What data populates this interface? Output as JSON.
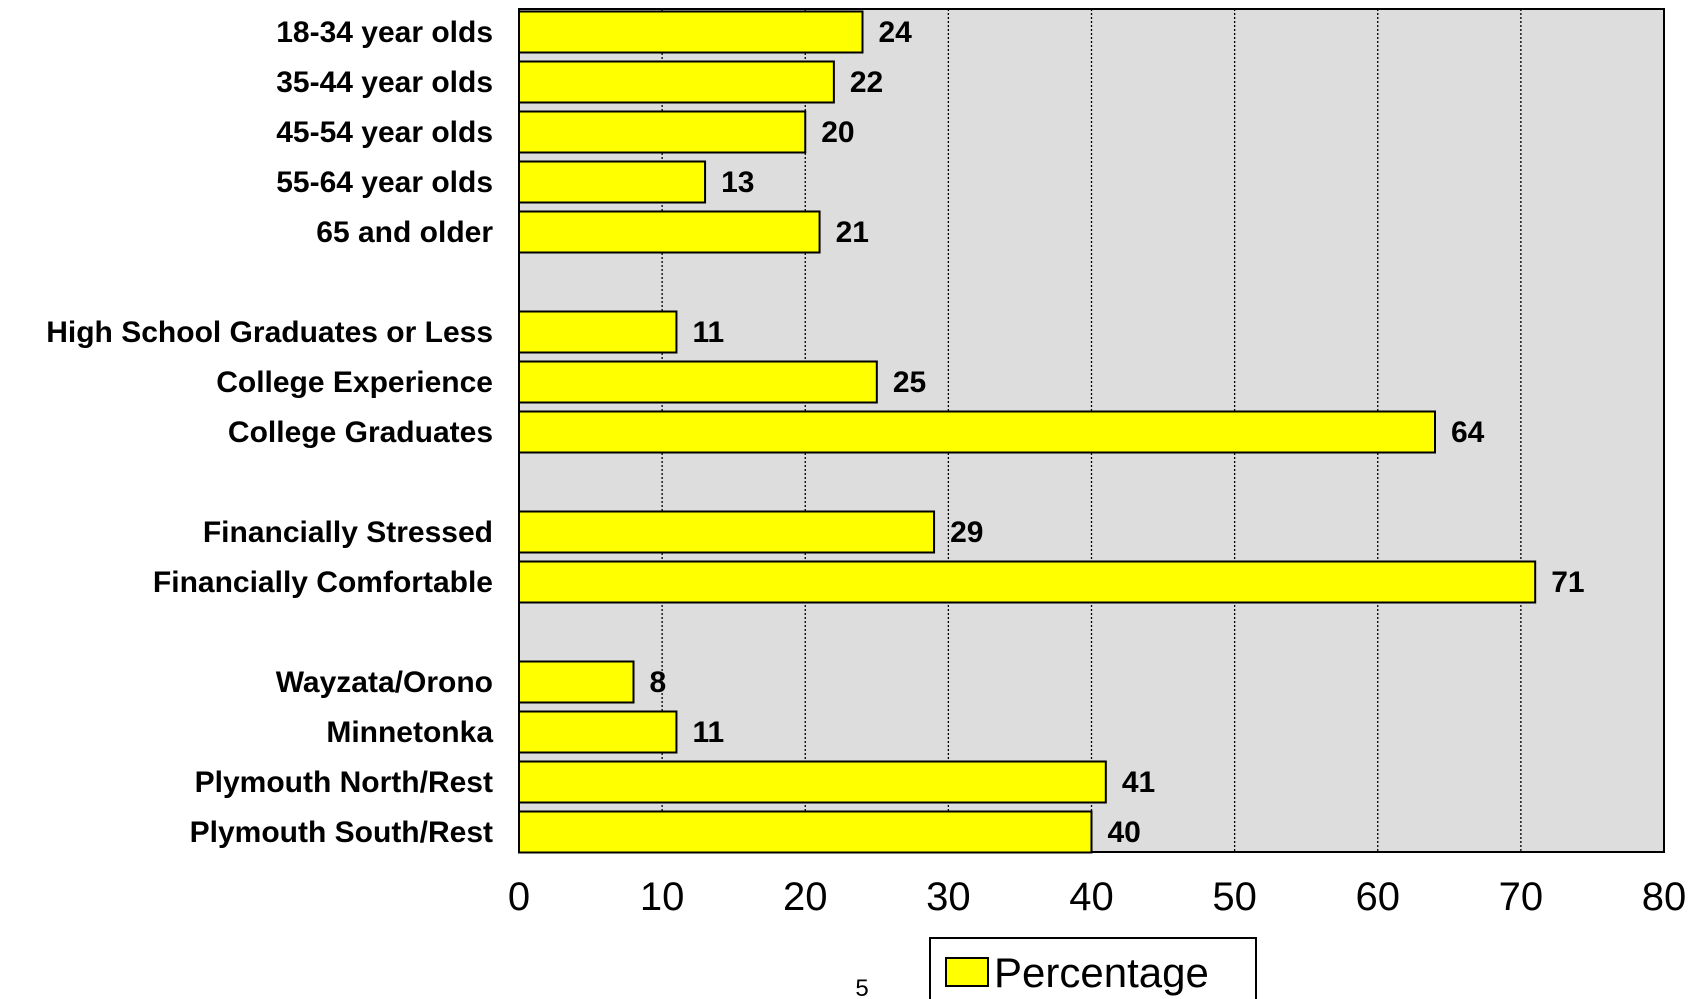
{
  "chart_data": {
    "type": "bar",
    "orientation": "horizontal",
    "categories": [
      "18-34 year olds",
      "35-44 year olds",
      "45-54 year olds",
      "55-64 year olds",
      "65 and older",
      "High School Graduates or Less",
      "College Experience",
      "College Graduates",
      "Financially Stressed",
      "Financially Comfortable",
      "Wayzata/Orono",
      "Minnetonka",
      "Plymouth North/Rest",
      "Plymouth South/Rest"
    ],
    "groups": [
      [
        0,
        1,
        2,
        3,
        4
      ],
      [
        5,
        6,
        7
      ],
      [
        8,
        9
      ],
      [
        10,
        11,
        12,
        13
      ]
    ],
    "series": [
      {
        "name": "Percentage",
        "color": "#ffff00",
        "values": [
          24,
          22,
          20,
          13,
          21,
          11,
          25,
          64,
          29,
          71,
          8,
          11,
          41,
          40
        ]
      }
    ],
    "xlim": [
      0,
      80
    ],
    "xticks": [
      "0",
      "10",
      "20",
      "30",
      "40",
      "50",
      "60",
      "70",
      "80"
    ],
    "grid": true,
    "legend": "bottom-center",
    "plot_background": "#dddddd"
  },
  "page_number": "5"
}
